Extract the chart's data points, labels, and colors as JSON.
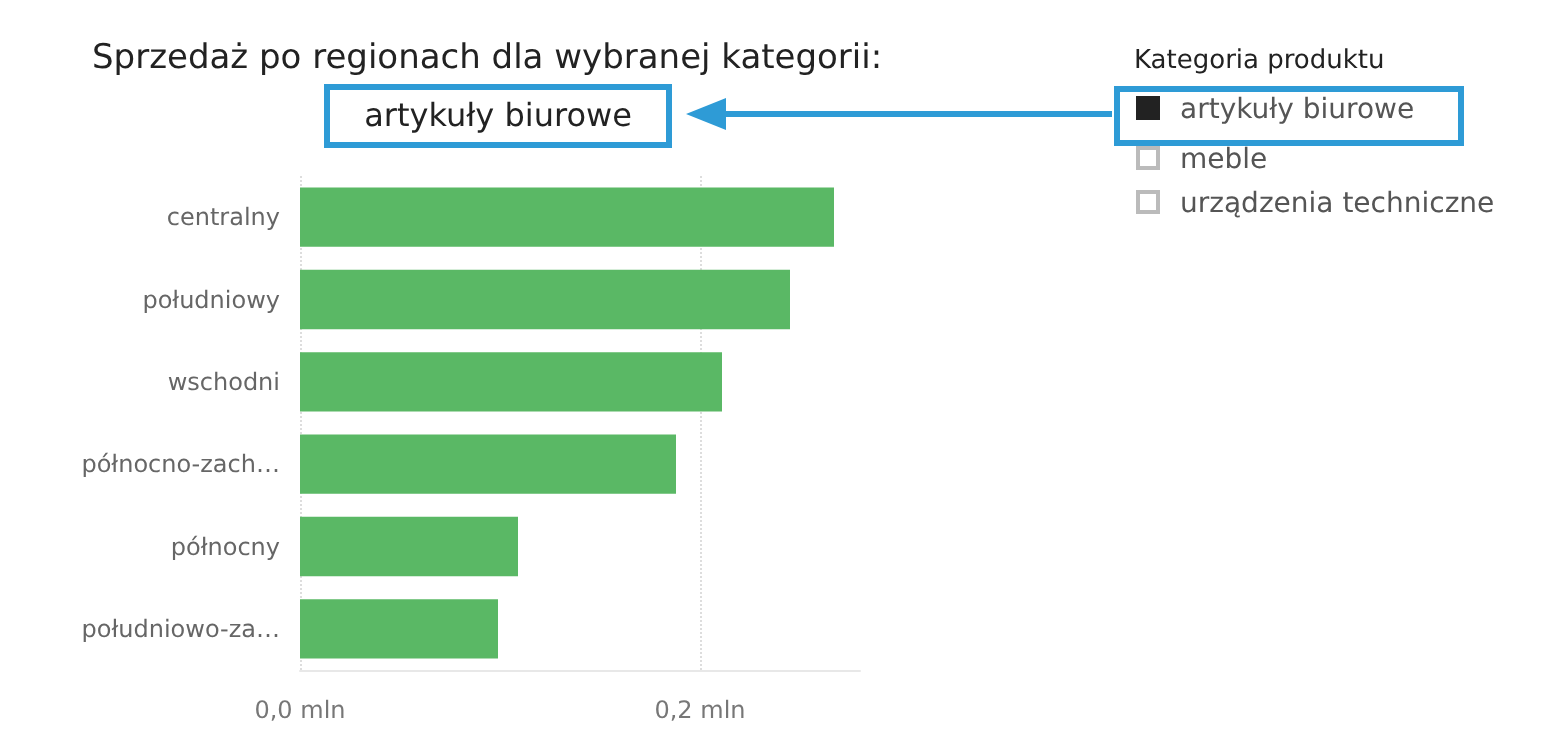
{
  "chart_data": {
    "type": "bar",
    "orientation": "horizontal",
    "title": "Sprzedaż po regionach dla wybranej kategorii:",
    "subtitle": "artykuły biurowe",
    "legend_title": "Kategoria produktu",
    "annotations": [
      "artykuły biurowe",
      "meble",
      "urządzenia techniczne"
    ],
    "categories": [
      "centralny",
      "południowy",
      "wschodni",
      "północno-zach…",
      "północny",
      "południowo-za…"
    ],
    "values": [
      0.267,
      0.245,
      0.211,
      0.188,
      0.109,
      0.099
    ],
    "color": "#5ab865",
    "xlim": [
      0,
      0.28
    ],
    "xticks": [
      {
        "value": 0,
        "label": "0,0 mln"
      },
      {
        "value": 0.2,
        "label": "0,2 mln"
      }
    ],
    "grid": "x"
  }
}
